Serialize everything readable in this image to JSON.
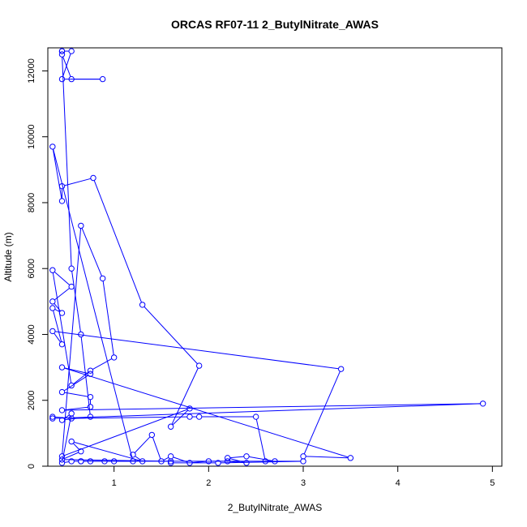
{
  "chart_data": {
    "type": "line",
    "title": "ORCAS RF07-11 2_ButylNitrate_AWAS",
    "xlabel": "2_ButylNitrate_AWAS",
    "ylabel": "Altitude (m)",
    "xlim": [
      0.3,
      5.1
    ],
    "ylim": [
      0,
      12700
    ],
    "x_ticks": [
      1,
      2,
      3,
      4,
      5
    ],
    "y_ticks": [
      0,
      2000,
      4000,
      6000,
      8000,
      10000,
      12000
    ],
    "grid": false,
    "legend": "none",
    "series_color": "#0000ff",
    "marker": "open-circle",
    "series": [
      {
        "points": [
          [
            0.45,
            12600
          ],
          [
            0.45,
            12600
          ],
          [
            0.55,
            12600
          ],
          [
            0.45,
            11750
          ],
          [
            0.88,
            11750
          ],
          [
            0.55,
            11750
          ],
          [
            0.45,
            12500
          ],
          [
            0.55,
            6000
          ],
          [
            0.65,
            4000
          ],
          [
            0.75,
            1500
          ],
          [
            0.45,
            1400
          ],
          [
            0.55,
            1600
          ],
          [
            0.45,
            100
          ],
          [
            0.55,
            150
          ],
          [
            0.65,
            150
          ],
          [
            0.75,
            150
          ],
          [
            0.9,
            150
          ],
          [
            1.0,
            150
          ],
          [
            1.2,
            150
          ],
          [
            0.35,
            9700
          ],
          [
            0.45,
            8050
          ],
          [
            0.45,
            8500
          ],
          [
            0.78,
            8750
          ],
          [
            1.3,
            4900
          ],
          [
            1.9,
            3050
          ],
          [
            1.6,
            1200
          ],
          [
            1.8,
            1750
          ],
          [
            0.45,
            300
          ],
          [
            0.65,
            7300
          ],
          [
            0.88,
            5700
          ],
          [
            1.0,
            3300
          ],
          [
            0.75,
            2900
          ],
          [
            0.55,
            2450
          ],
          [
            0.35,
            5950
          ],
          [
            0.55,
            5450
          ],
          [
            0.35,
            5000
          ],
          [
            0.45,
            4650
          ],
          [
            0.35,
            4800
          ],
          [
            0.45,
            3700
          ],
          [
            0.35,
            4100
          ],
          [
            3.4,
            2950
          ],
          [
            3.0,
            300
          ],
          [
            3.5,
            250
          ],
          [
            0.45,
            3000
          ],
          [
            0.75,
            2800
          ],
          [
            0.45,
            2250
          ],
          [
            0.75,
            2100
          ],
          [
            0.75,
            1800
          ],
          [
            0.45,
            1700
          ],
          [
            4.9,
            1900
          ],
          [
            0.35,
            1450
          ],
          [
            0.35,
            1500
          ],
          [
            0.55,
            1450
          ],
          [
            1.8,
            1500
          ],
          [
            1.9,
            1500
          ],
          [
            2.5,
            1500
          ],
          [
            2.6,
            150
          ],
          [
            2.7,
            150
          ],
          [
            2.4,
            300
          ],
          [
            2.2,
            250
          ],
          [
            2.4,
            100
          ],
          [
            2.2,
            150
          ],
          [
            2.0,
            150
          ],
          [
            1.8,
            100
          ],
          [
            1.6,
            300
          ],
          [
            1.5,
            150
          ],
          [
            1.4,
            950
          ],
          [
            1.2,
            350
          ],
          [
            1.3,
            150
          ],
          [
            0.55,
            750
          ],
          [
            0.65,
            450
          ],
          [
            0.45,
            200
          ],
          [
            1.6,
            150
          ],
          [
            1.6,
            100
          ],
          [
            2.1,
            100
          ],
          [
            3.0,
            150
          ],
          [
            0.65,
            150
          ]
        ]
      }
    ]
  }
}
